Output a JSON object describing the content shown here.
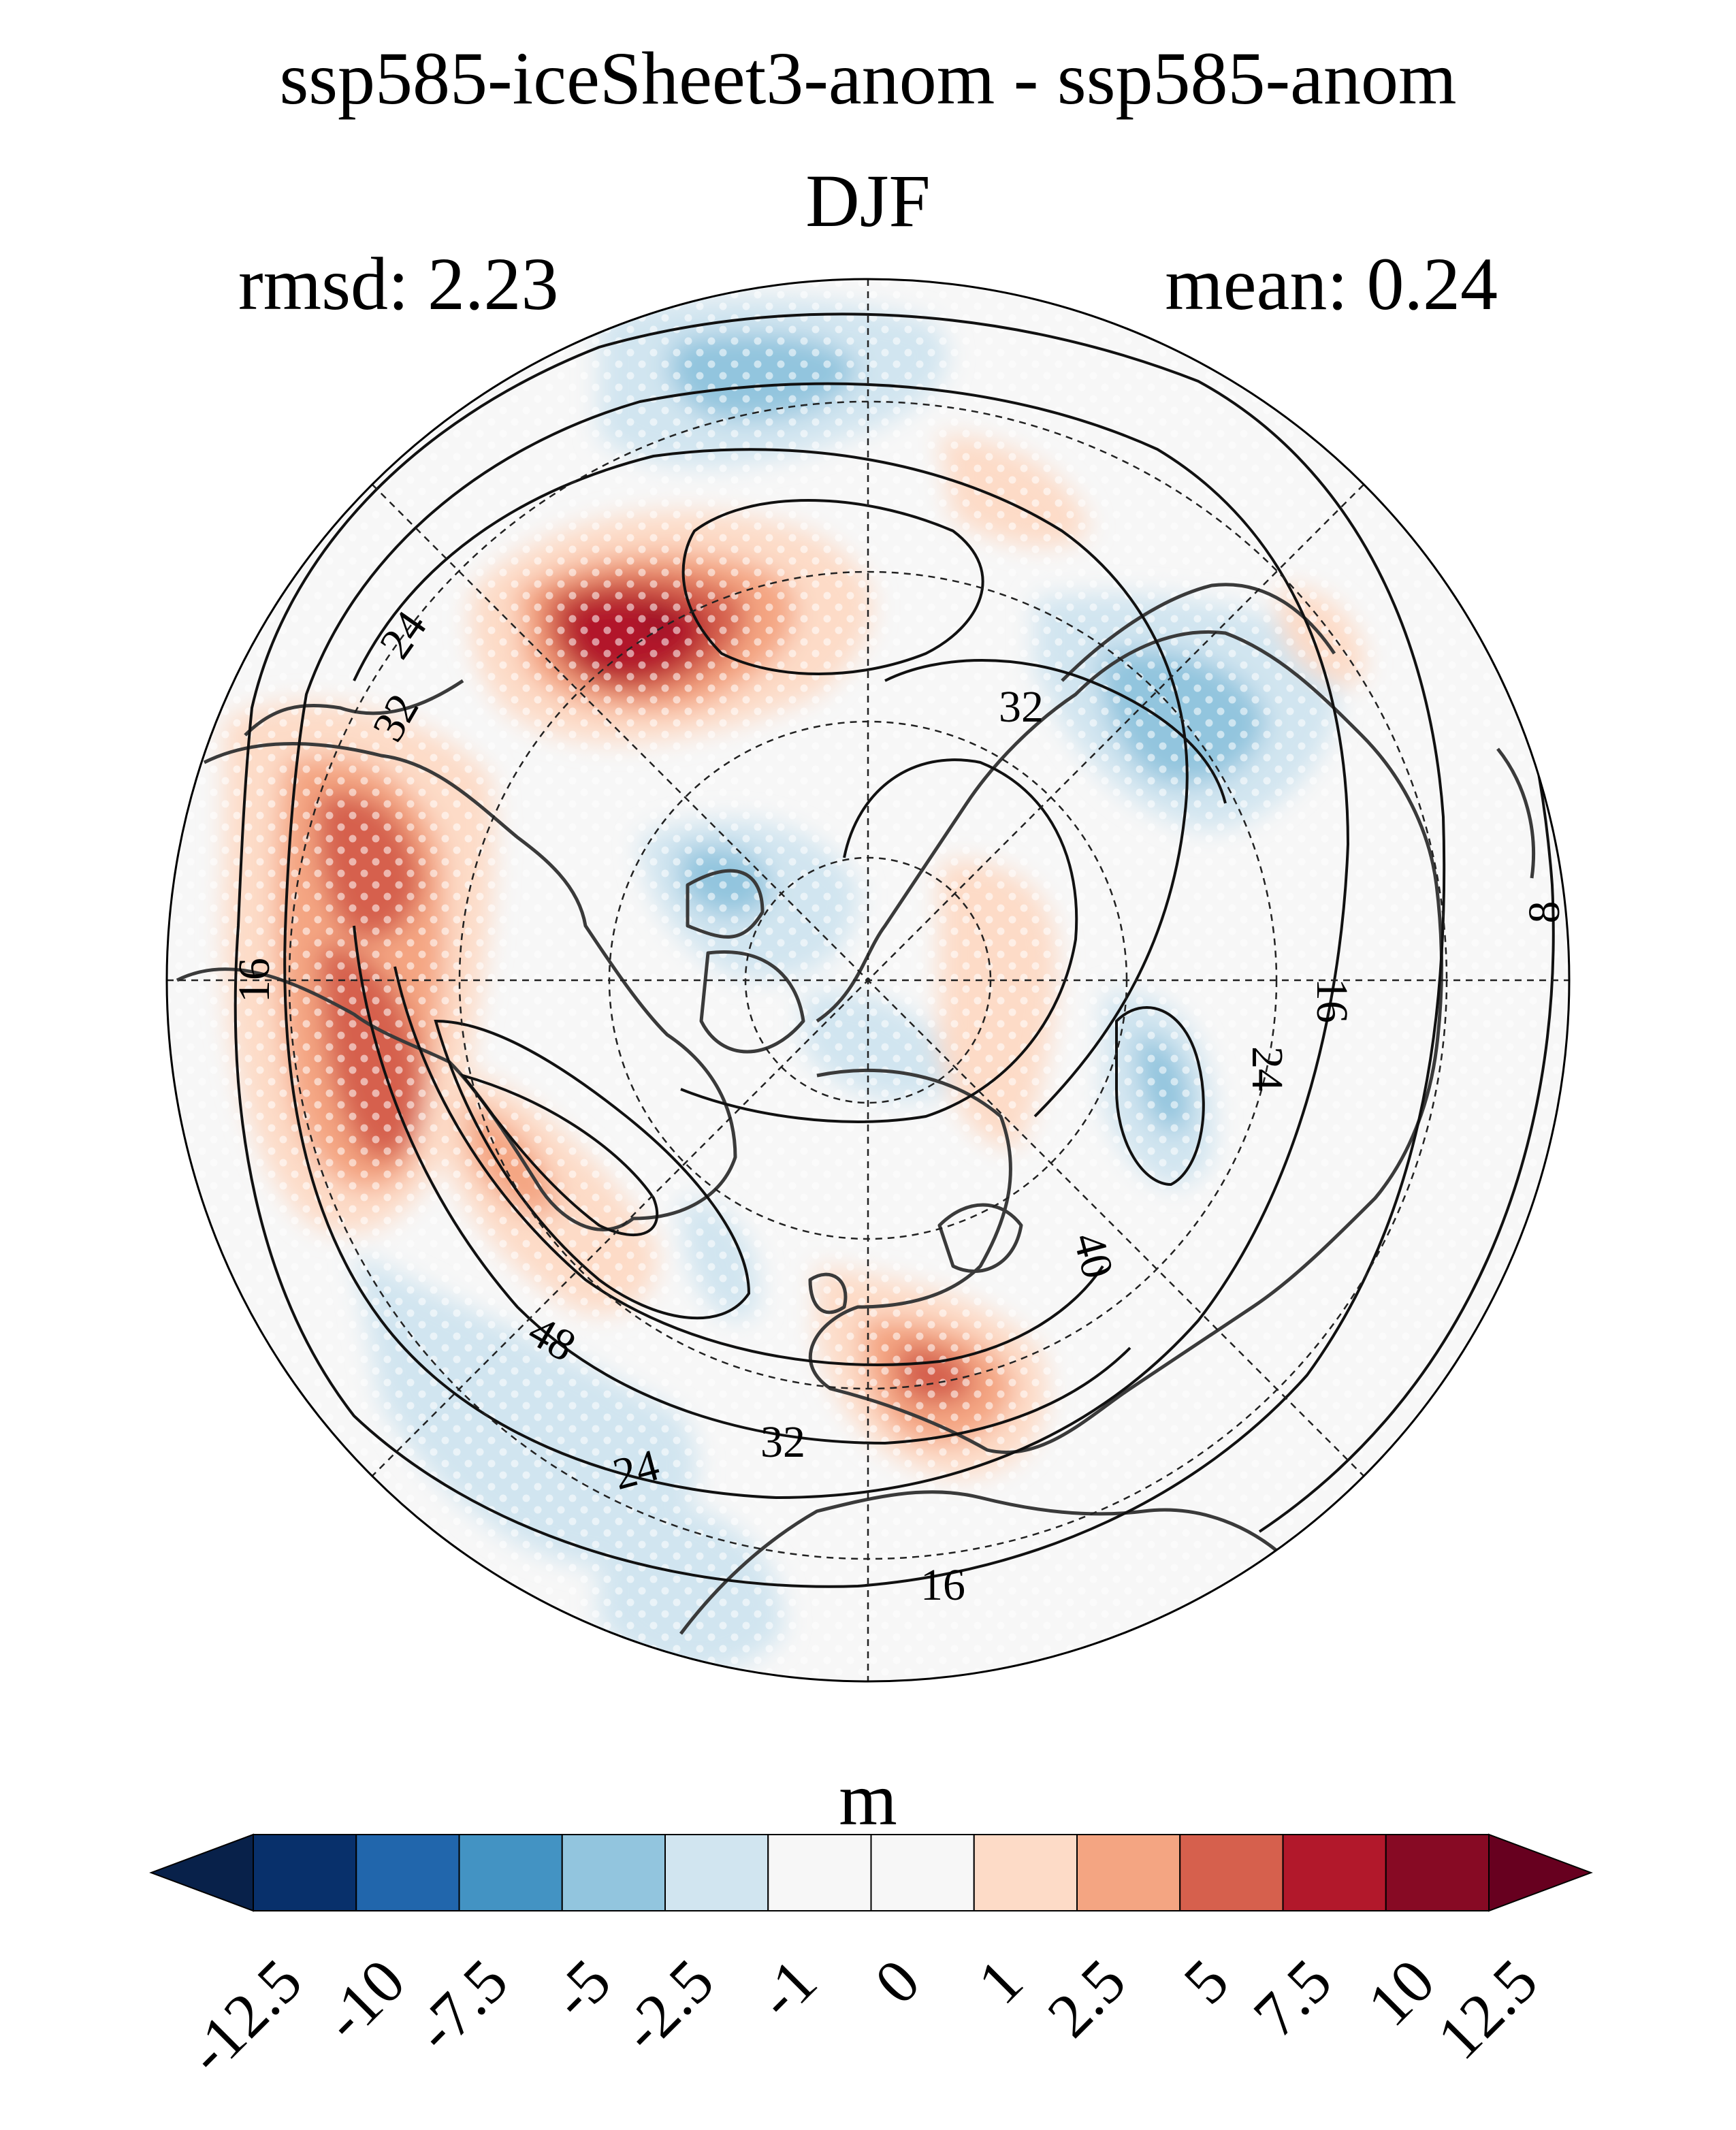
{
  "header": {
    "title": "ssp585-iceSheet3-anom - ssp585-anom",
    "season": "DJF",
    "rmsd": "rmsd: 2.23",
    "mean": "mean: 0.24"
  },
  "map": {
    "projection": "north-polar-stereographic",
    "contour_labels": [
      "8",
      "16",
      "16",
      "16",
      "16",
      "24",
      "24",
      "24",
      "24",
      "32",
      "32",
      "32",
      "40",
      "48"
    ],
    "stippling": "white dots over significant areas"
  },
  "colorbar": {
    "unit": "m",
    "ticks": [
      "-12.5",
      "-10",
      "-7.5",
      "-5",
      "-2.5",
      "-1",
      "0",
      "1",
      "2.5",
      "5",
      "7.5",
      "10",
      "12.5"
    ],
    "colors": [
      "#08214a",
      "#08306b",
      "#2166ac",
      "#4393c3",
      "#92c5de",
      "#d1e5f0",
      "#f7f7f7",
      "#f7f7f7",
      "#fddbc7",
      "#f4a582",
      "#d6604d",
      "#b2182b",
      "#870a24",
      "#67001f"
    ],
    "extend": "both"
  }
}
